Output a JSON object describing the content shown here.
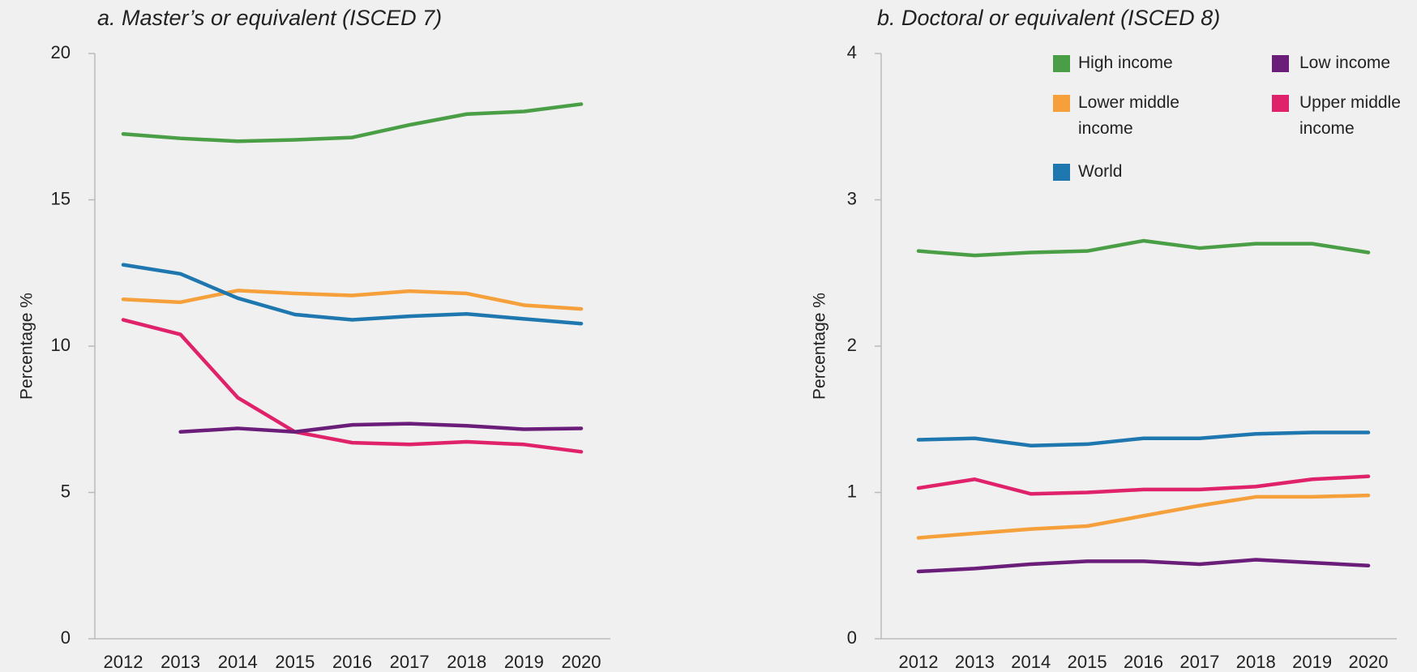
{
  "chart_data": [
    {
      "type": "line",
      "title": "a. Master’s or equivalent (ISCED 7)",
      "ylabel": "Percentage %",
      "categories": [
        "2012",
        "2013",
        "2014",
        "2015",
        "2016",
        "2017",
        "2018",
        "2019",
        "2020"
      ],
      "ylim": [
        0,
        20
      ],
      "yticks": [
        0,
        5,
        10,
        15,
        20
      ],
      "series": [
        {
          "name": "High income",
          "color": "#4a9e45",
          "values": [
            17.25,
            17.1,
            17.0,
            17.05,
            17.13,
            17.56,
            17.93,
            18.02,
            18.27
          ]
        },
        {
          "name": "Lower middle income",
          "color": "#f5a03a",
          "values": [
            11.6,
            11.5,
            11.9,
            11.8,
            11.73,
            11.88,
            11.8,
            11.4,
            11.27
          ]
        },
        {
          "name": "World",
          "color": "#1f77b0",
          "values": [
            12.78,
            12.47,
            11.64,
            11.08,
            10.9,
            11.02,
            11.1,
            10.93,
            10.77
          ]
        },
        {
          "name": "Upper middle income",
          "color": "#e0226a",
          "values": [
            10.9,
            10.4,
            8.24,
            7.07,
            6.7,
            6.64,
            6.73,
            6.64,
            6.39
          ]
        },
        {
          "name": "Low income",
          "color": "#6b1d7a",
          "values": [
            null,
            7.07,
            7.19,
            7.07,
            7.31,
            7.35,
            7.28,
            7.16,
            7.19
          ]
        }
      ]
    },
    {
      "type": "line",
      "title": "b. Doctoral or equivalent (ISCED 8)",
      "ylabel": "Percentage %",
      "categories": [
        "2012",
        "2013",
        "2014",
        "2015",
        "2016",
        "2017",
        "2018",
        "2019",
        "2020"
      ],
      "ylim": [
        0,
        4
      ],
      "yticks": [
        0,
        1,
        2,
        3,
        4
      ],
      "legend": "upper right",
      "series": [
        {
          "name": "High income",
          "color": "#4a9e45",
          "values": [
            2.65,
            2.62,
            2.64,
            2.65,
            2.72,
            2.67,
            2.7,
            2.7,
            2.64
          ]
        },
        {
          "name": "Low income",
          "color": "#6b1d7a",
          "values": [
            0.46,
            0.48,
            0.51,
            0.53,
            0.53,
            0.51,
            0.54,
            0.52,
            0.5
          ]
        },
        {
          "name": "Lower middle income",
          "color": "#f5a03a",
          "values": [
            0.69,
            0.72,
            0.75,
            0.77,
            0.84,
            0.91,
            0.97,
            0.97,
            0.98
          ]
        },
        {
          "name": "Upper middle income",
          "color": "#e0226a",
          "values": [
            1.03,
            1.09,
            0.99,
            1.0,
            1.02,
            1.02,
            1.04,
            1.09,
            1.11
          ]
        },
        {
          "name": "World",
          "color": "#1f77b0",
          "values": [
            1.36,
            1.37,
            1.32,
            1.33,
            1.37,
            1.37,
            1.4,
            1.41,
            1.41
          ]
        }
      ]
    }
  ]
}
